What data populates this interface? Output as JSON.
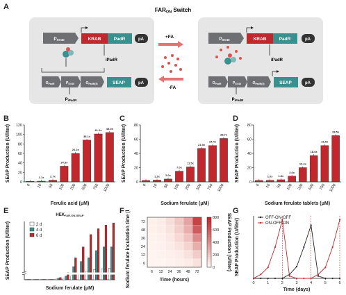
{
  "panel_labels": {
    "a": "A",
    "b": "B",
    "c": "C",
    "d": "D",
    "e": "E",
    "f": "F",
    "g": "G"
  },
  "diagram": {
    "title": "FAR",
    "title_sub": "ON",
    "title_tail": " Switch",
    "left": {
      "psv40": "P",
      "psv40_sub": "SV40",
      "krab": "KRAB",
      "padr": "PadR",
      "pa1": "pA",
      "ipadr": "iPadR",
      "opadr1": "O",
      "opadr1_sub": "PadR",
      "psv40b": "P",
      "psv40b_sub": "SV40",
      "opadr2": "O",
      "opadr2_sub": "PadR(5)",
      "seap": "SEAP",
      "pa2": "pA",
      "pipadr": "P",
      "pipadr_sub": "iPadR"
    },
    "right": {
      "psv40": "P",
      "psv40_sub": "SV40",
      "krab": "KRAB",
      "padr": "PadR",
      "pa1": "pA",
      "ipadr": "iPadR",
      "opadr1": "O",
      "opadr1_sub": "PadR",
      "psv40b": "P",
      "psv40b_sub": "SV40",
      "opadr2": "O",
      "opadr2_sub": "PadR(5)",
      "seap": "SEAP",
      "pa2": "pA",
      "pipadr": "P",
      "pipadr_sub": "iPadR"
    },
    "plus_fa": "+FA",
    "minus_fa": "-FA",
    "colors": {
      "krab": "#c0282d",
      "padr": "#3a8f8f",
      "seap": "#3a8f8f",
      "promoter": "#6d6f73",
      "pa": "#333333",
      "fa": "#e05050"
    }
  },
  "chart_data": [
    {
      "id": "B",
      "type": "bar",
      "categories": [
        "0",
        "10",
        "50",
        "100",
        "200",
        "500",
        "750",
        "1000"
      ],
      "values": [
        1.2,
        1.5,
        3.5,
        33,
        60,
        88,
        101,
        104
      ],
      "data_labels": [
        "",
        "1.1x",
        "2.7x",
        "14.5x",
        "26.2x",
        "38.1x",
        "41.1x",
        "43.0x"
      ],
      "xlabel": "Ferulic acid (μM)",
      "ylabel": "SEAP Production (U/liter)",
      "ylim": [
        0,
        120
      ],
      "yticks": [
        0,
        20,
        40,
        60,
        80,
        100,
        120
      ],
      "color": "#c0282d"
    },
    {
      "id": "C",
      "type": "bar",
      "categories": [
        "0",
        "10",
        "50",
        "100",
        "200",
        "500",
        "750",
        "1000"
      ],
      "values": [
        2,
        2.5,
        4,
        15,
        21,
        47,
        51,
        61
      ],
      "data_labels": [
        "",
        "1.2x",
        "2.0x",
        "7.0x",
        "11.5x",
        "21.9x",
        "24.4x",
        "28.7x"
      ],
      "xlabel": "Sodium ferulate (μM)",
      "ylabel": "SEAP Production (U/liter)",
      "ylim": [
        0,
        80
      ],
      "yticks": [
        0,
        20,
        40,
        60,
        80
      ],
      "color": "#c0282d"
    },
    {
      "id": "D",
      "type": "bar",
      "categories": [
        "0",
        "10",
        "50",
        "100",
        "200",
        "500",
        "750",
        "1000"
      ],
      "values": [
        2,
        2.2,
        3,
        8,
        20,
        37,
        51,
        65
      ],
      "data_labels": [
        "",
        "1.0x",
        "1.5x",
        "2.6x",
        "10.4x",
        "18.4x",
        "21.0x",
        "28.5x"
      ],
      "xlabel": "Sodium ferulate tablets (μM)",
      "ylabel": "SEAP Production (U/liter)",
      "ylim": [
        0,
        80
      ],
      "yticks": [
        0,
        20,
        40,
        60,
        80
      ],
      "color": "#c0282d"
    },
    {
      "id": "E",
      "type": "bar",
      "title": "HEK",
      "title_sub": "FAR-ON-SEAP",
      "categories": [
        "0",
        "1",
        "2",
        "5",
        "10",
        "20",
        "50",
        "100",
        "200",
        "500",
        "750",
        "1000"
      ],
      "series": [
        {
          "name": "2 d",
          "values": [
            0.5,
            0.5,
            0.5,
            0.5,
            1,
            2,
            5,
            8,
            12,
            14,
            15,
            16
          ],
          "color": "#ffffff"
        },
        {
          "name": "4 d",
          "values": [
            0.5,
            0.5,
            0.5,
            0.5,
            2,
            5,
            18,
            25,
            30,
            40,
            45,
            45
          ],
          "color": "#3a8f8f"
        },
        {
          "name": "6 d",
          "values": [
            0.5,
            0.5,
            0.5,
            0.5,
            3,
            10,
            30,
            45,
            62,
            70,
            75,
            78
          ],
          "color": "#c0282d"
        }
      ],
      "xlabel": "Sodium ferulate (μM)",
      "ylabel": "SEAP Production (U/liter)",
      "ylim": [
        0,
        80
      ],
      "break": true
    },
    {
      "id": "F",
      "type": "heatmap",
      "x": [
        6,
        12,
        24,
        36,
        48,
        72
      ],
      "y": [
        6,
        12,
        24,
        36,
        48,
        72
      ],
      "xlabel": "Time (hours)",
      "ylabel": "Sodium ferulate incubation time (hours)",
      "colorbar_label": "SEAP Production (U/liter)",
      "colorbar_ticks": [
        0,
        200,
        400,
        600,
        800
      ],
      "zlim": [
        0,
        800
      ],
      "z": [
        [
          20,
          40,
          90,
          180,
          320,
          700
        ],
        [
          15,
          30,
          70,
          150,
          280,
          600
        ],
        [
          10,
          25,
          55,
          110,
          200,
          420
        ],
        [
          8,
          18,
          35,
          70,
          130,
          280
        ],
        [
          5,
          10,
          20,
          40,
          80,
          160
        ],
        [
          3,
          5,
          10,
          20,
          40,
          80
        ]
      ]
    },
    {
      "id": "G",
      "type": "line",
      "x": [
        0,
        0.5,
        1,
        1.5,
        2,
        2.5,
        3,
        3.5,
        4,
        4.5,
        5,
        5.5,
        6
      ],
      "series": [
        {
          "name": "OFF-ON-OFF",
          "values": [
            0,
            0,
            0,
            0,
            0,
            5,
            15,
            40,
            68,
            3,
            0,
            0,
            0
          ],
          "color": "#222222"
        },
        {
          "name": "ON-OFF-ON",
          "values": [
            0,
            5,
            14,
            40,
            75,
            3,
            0,
            0,
            0,
            5,
            14,
            40,
            75
          ],
          "color": "#c0282d"
        }
      ],
      "vlines": [
        2,
        4,
        6
      ],
      "xlabel": "Time (days)",
      "ylabel": "SEAP Production (U/liter)",
      "xticks": [
        0,
        1,
        2,
        3,
        4,
        5,
        6
      ],
      "xlim": [
        0,
        6
      ],
      "ylim": [
        0,
        80
      ]
    }
  ]
}
